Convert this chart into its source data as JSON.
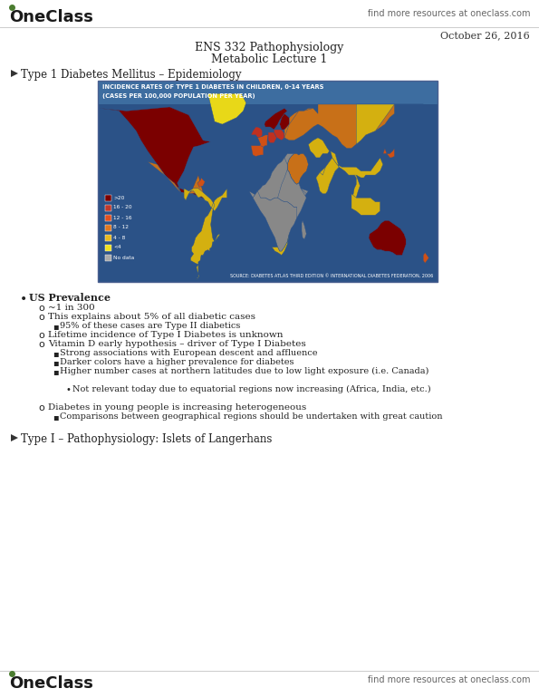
{
  "bg_color": "#ffffff",
  "header_logo_color": "#4a7c2f",
  "header_right_text": "find more resources at oneclass.com",
  "header_right_color": "#666666",
  "date_text": "October 26, 2016",
  "date_color": "#333333",
  "title_line1": "ENS 332 Pathophysiology",
  "title_line2": "Metabolic Lecture 1",
  "title_color": "#222222",
  "section1_header": "Type 1 Diabetes Mellitus – Epidemiology",
  "section2_header": "Type I – Pathophysiology: Islets of Langerhans",
  "map_bg_color": "#2b5287",
  "map_title_line1": "INCIDENCE RATES OF TYPE 1 DIABETES IN CHILDREN, 0-14 YEARS",
  "map_title_line2": "(CASES PER 100,000 POPULATION PER YEAR)",
  "map_source": "SOURCE: DIABETES ATLAS THIRD EDITION © INTERNATIONAL DIABETES FEDERATION, 2006",
  "legend_colors": [
    "#7a0000",
    "#c0392b",
    "#e05020",
    "#e07820",
    "#e8b820",
    "#f0e020",
    "#aaaaaa"
  ],
  "legend_labels": [
    ">20",
    "16 - 20",
    "12 - 16",
    "8 - 12",
    "4 - 8",
    "<4",
    "No data"
  ],
  "bullet_text_color": "#222222",
  "bullet_main": "US Prevalence",
  "bullets": [
    {
      "level": 2,
      "text": "~1 in 300"
    },
    {
      "level": 2,
      "text": "This explains about 5% of all diabetic cases"
    },
    {
      "level": 3,
      "text": "95% of these cases are Type II diabetics"
    },
    {
      "level": 2,
      "text": "Lifetime incidence of Type I Diabetes is unknown"
    },
    {
      "level": 2,
      "text": "Vitamin D early hypothesis – driver of Type I Diabetes"
    },
    {
      "level": 3,
      "text": "Strong associations with European descent and affluence"
    },
    {
      "level": 3,
      "text": "Darker colors have a higher prevalence for diabetes"
    },
    {
      "level": 3,
      "text": "Higher number cases at northern latitudes due to low light exposure (i.e. Canada)"
    },
    {
      "level": 4,
      "text": "Not relevant today due to equatorial regions now increasing (Africa, India, etc.)"
    },
    {
      "level": 2,
      "text": "Diabetes in young people is increasing heterogeneous"
    },
    {
      "level": 3,
      "text": "Comparisons between geographical regions should be undertaken with great caution"
    }
  ],
  "footer_logo_color": "#4a7c2f",
  "footer_right_text": "find more resources at oneclass.com",
  "footer_right_color": "#666666"
}
